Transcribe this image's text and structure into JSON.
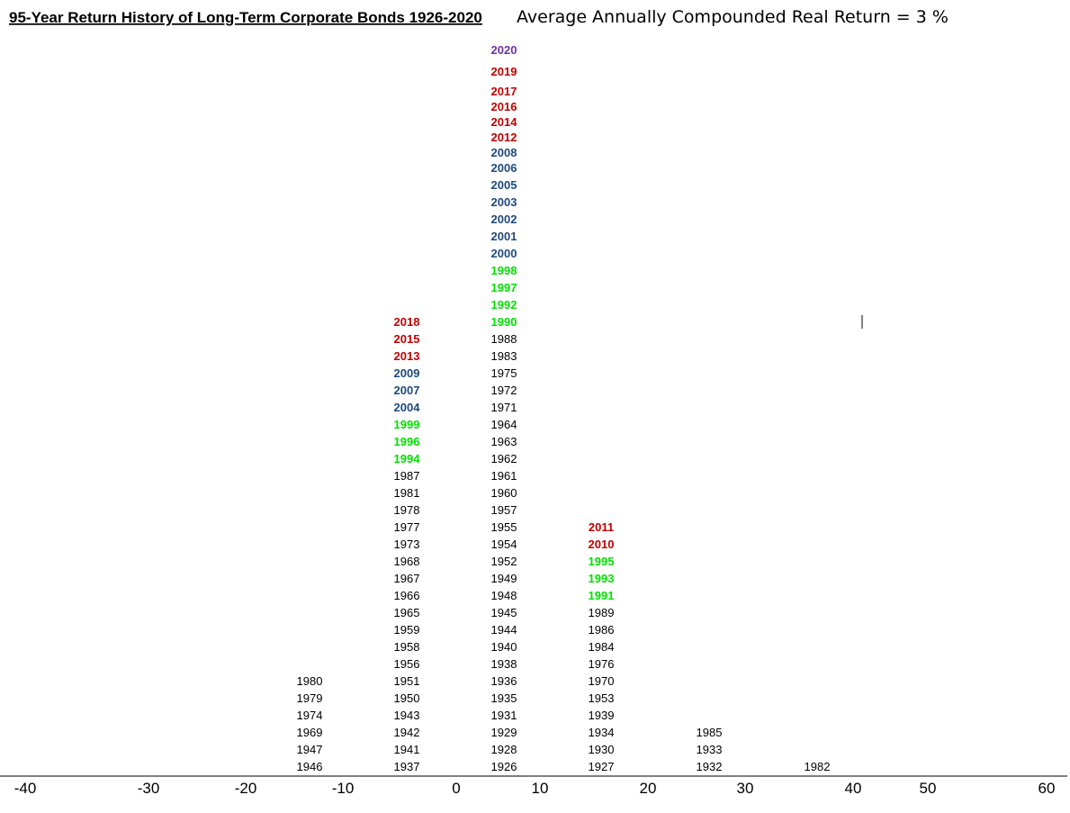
{
  "header": {
    "title": "95-Year Return History of Long-Term Corporate Bonds 1926-2020",
    "subtitle": "Average Annually Compounded Real Return  =  3 %"
  },
  "colors": {
    "default": "#000000",
    "red": "#C00000",
    "blue": "#1F497D",
    "green": "#00E000",
    "purple": "#7030A0"
  },
  "chart_data": {
    "type": "histogram",
    "title": "95-Year Return History of Long-Term Corporate Bonds 1926-2020",
    "subtitle": "Average Annually Compounded Real Return  =  3 %",
    "x_ticks": [
      "-40",
      "-30",
      "-20",
      "-10",
      "0",
      "10",
      "20",
      "30",
      "40",
      "50",
      "60"
    ],
    "bins": [
      {
        "range": [
          -10,
          0
        ],
        "years": [
          {
            "year": "1946"
          },
          {
            "year": "1947"
          },
          {
            "year": "1969"
          },
          {
            "year": "1974"
          },
          {
            "year": "1979"
          },
          {
            "year": "1980"
          }
        ]
      },
      {
        "range": [
          0,
          10
        ],
        "years": [
          {
            "year": "1937"
          },
          {
            "year": "1941"
          },
          {
            "year": "1942"
          },
          {
            "year": "1943"
          },
          {
            "year": "1950"
          },
          {
            "year": "1951"
          },
          {
            "year": "1956"
          },
          {
            "year": "1958"
          },
          {
            "year": "1959"
          },
          {
            "year": "1965"
          },
          {
            "year": "1966"
          },
          {
            "year": "1967"
          },
          {
            "year": "1968"
          },
          {
            "year": "1973"
          },
          {
            "year": "1977"
          },
          {
            "year": "1978"
          },
          {
            "year": "1981"
          },
          {
            "year": "1987"
          },
          {
            "year": "1994",
            "color": "green"
          },
          {
            "year": "1996",
            "color": "green"
          },
          {
            "year": "1999",
            "color": "green"
          },
          {
            "year": "2004",
            "color": "blue"
          },
          {
            "year": "2007",
            "color": "blue"
          },
          {
            "year": "2009",
            "color": "blue"
          },
          {
            "year": "2013",
            "color": "red"
          },
          {
            "year": "2015",
            "color": "red"
          },
          {
            "year": "2018",
            "color": "red"
          }
        ]
      },
      {
        "range": [
          10,
          20
        ],
        "years": [
          {
            "year": "1926"
          },
          {
            "year": "1928"
          },
          {
            "year": "1929"
          },
          {
            "year": "1931"
          },
          {
            "year": "1935"
          },
          {
            "year": "1936"
          },
          {
            "year": "1938"
          },
          {
            "year": "1940"
          },
          {
            "year": "1944"
          },
          {
            "year": "1945"
          },
          {
            "year": "1948"
          },
          {
            "year": "1949"
          },
          {
            "year": "1952"
          },
          {
            "year": "1954"
          },
          {
            "year": "1955"
          },
          {
            "year": "1957"
          },
          {
            "year": "1960"
          },
          {
            "year": "1961"
          },
          {
            "year": "1962"
          },
          {
            "year": "1963"
          },
          {
            "year": "1964"
          },
          {
            "year": "1971"
          },
          {
            "year": "1972"
          },
          {
            "year": "1975"
          },
          {
            "year": "1983"
          },
          {
            "year": "1988"
          },
          {
            "year": "1990",
            "color": "green"
          },
          {
            "year": "1992",
            "color": "green"
          },
          {
            "year": "1997",
            "color": "green"
          },
          {
            "year": "1998",
            "color": "green"
          },
          {
            "year": "2000",
            "color": "blue"
          },
          {
            "year": "2001",
            "color": "blue"
          },
          {
            "year": "2002",
            "color": "blue"
          },
          {
            "year": "2003",
            "color": "blue"
          },
          {
            "year": "2005",
            "color": "blue"
          },
          {
            "year": "2006",
            "color": "blue"
          },
          {
            "year": "2008",
            "color": "blue"
          },
          {
            "year": "2012",
            "color": "red"
          },
          {
            "year": "2014",
            "color": "red"
          },
          {
            "year": "2016",
            "color": "red"
          },
          {
            "year": "2017",
            "color": "red"
          },
          {
            "year": "2019",
            "color": "red",
            "emphasis": true
          },
          {
            "year": "2020",
            "color": "purple",
            "emphasis": true
          }
        ]
      },
      {
        "range": [
          20,
          30
        ],
        "years": [
          {
            "year": "1927"
          },
          {
            "year": "1930"
          },
          {
            "year": "1934"
          },
          {
            "year": "1939"
          },
          {
            "year": "1953"
          },
          {
            "year": "1970"
          },
          {
            "year": "1976"
          },
          {
            "year": "1984"
          },
          {
            "year": "1986"
          },
          {
            "year": "1989"
          },
          {
            "year": "1991",
            "color": "green"
          },
          {
            "year": "1993",
            "color": "green"
          },
          {
            "year": "1995",
            "color": "green"
          },
          {
            "year": "2010",
            "color": "red"
          },
          {
            "year": "2011",
            "color": "red"
          }
        ]
      },
      {
        "range": [
          30,
          40
        ],
        "years": [
          {
            "year": "1932"
          },
          {
            "year": "1933"
          },
          {
            "year": "1985"
          }
        ]
      },
      {
        "range": [
          40,
          50
        ],
        "years": [
          {
            "year": "1982"
          }
        ]
      }
    ]
  }
}
